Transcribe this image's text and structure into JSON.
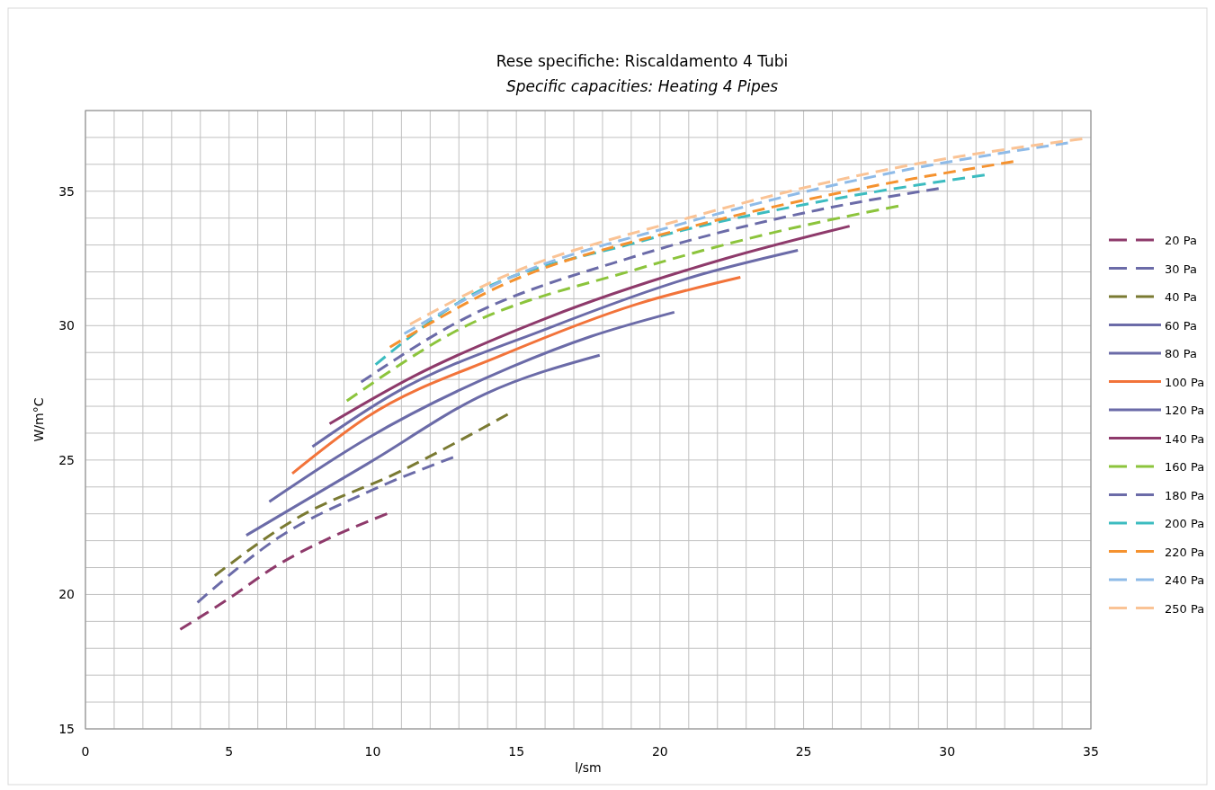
{
  "chart_data": {
    "type": "line",
    "title": "Rese specifiche: Riscaldamento 4 Tubi",
    "subtitle": "Specific capacities: Heating 4 Pipes",
    "xlabel": "l/sm",
    "ylabel": "W/m°C",
    "xlim": [
      0,
      35
    ],
    "ylim": [
      15,
      38
    ],
    "xticks": [
      0,
      {
        "value": 1,
        "label": null
      },
      {
        "value": 2,
        "label": null
      },
      {
        "value": 3,
        "label": null
      },
      {
        "value": 4,
        "label": null
      },
      5,
      {
        "value": 6,
        "label": null
      },
      {
        "value": 7,
        "label": null
      },
      {
        "value": 8,
        "label": null
      },
      {
        "value": 9,
        "label": null
      },
      10,
      {
        "value": 11,
        "label": null
      },
      {
        "value": 12,
        "label": null
      },
      {
        "value": 13,
        "label": null
      },
      {
        "value": 14,
        "label": null
      },
      15,
      {
        "value": 16,
        "label": null
      },
      {
        "value": 17,
        "label": null
      },
      {
        "value": 18,
        "label": null
      },
      {
        "value": 19,
        "label": null
      },
      20,
      {
        "value": 21,
        "label": null
      },
      {
        "value": 22,
        "label": null
      },
      {
        "value": 23,
        "label": null
      },
      {
        "value": 24,
        "label": null
      },
      25,
      {
        "value": 26,
        "label": null
      },
      {
        "value": 27,
        "label": null
      },
      {
        "value": 28,
        "label": null
      },
      {
        "value": 29,
        "label": null
      },
      30,
      {
        "value": 31,
        "label": null
      },
      {
        "value": 32,
        "label": null
      },
      {
        "value": 33,
        "label": null
      },
      {
        "value": 34,
        "label": null
      },
      35
    ],
    "yticks": [
      15,
      {
        "value": 16,
        "label": null
      },
      {
        "value": 17,
        "label": null
      },
      {
        "value": 18,
        "label": null
      },
      {
        "value": 19,
        "label": null
      },
      20,
      {
        "value": 21,
        "label": null
      },
      {
        "value": 22,
        "label": null
      },
      {
        "value": 23,
        "label": null
      },
      {
        "value": 24,
        "label": null
      },
      25,
      {
        "value": 26,
        "label": null
      },
      {
        "value": 27,
        "label": null
      },
      {
        "value": 28,
        "label": null
      },
      {
        "value": 29,
        "label": null
      },
      30,
      {
        "value": 31,
        "label": null
      },
      {
        "value": 32,
        "label": null
      },
      {
        "value": 33,
        "label": null
      },
      {
        "value": 34,
        "label": null
      },
      35,
      {
        "value": 36,
        "label": null
      },
      {
        "value": 37,
        "label": null
      },
      {
        "value": 38,
        "label": null
      }
    ],
    "grid": true,
    "legend": "right",
    "series": [
      {
        "name": "20 Pa",
        "color": "#8e3a6b",
        "line_style": "dashed",
        "x": [
          3.3,
          5,
          6.7,
          8.5,
          10.5
        ],
        "values": [
          18.7,
          19.85,
          21.1,
          22.1,
          23.0
        ]
      },
      {
        "name": "30 Pa",
        "color": "#6b6ba8",
        "line_style": "dashed",
        "x": [
          3.9,
          6.7,
          9.8,
          12.8
        ],
        "values": [
          19.7,
          22.1,
          23.8,
          25.1
        ]
      },
      {
        "name": "40 Pa",
        "color": "#7a7a32",
        "line_style": "dashed",
        "x": [
          4.5,
          7.3,
          11.0,
          14.7
        ],
        "values": [
          20.7,
          22.8,
          24.6,
          26.7
        ]
      },
      {
        "name": "60 Pa",
        "color": "#6b6ba8",
        "line_style": "solid",
        "x": [
          5.6,
          9.8,
          13.9,
          17.9
        ],
        "values": [
          22.2,
          24.85,
          27.45,
          28.9
        ]
      },
      {
        "name": "80 Pa",
        "color": "#6b6ba8",
        "line_style": "solid",
        "x": [
          6.4,
          9.8,
          14.8,
          17.6,
          20.5
        ],
        "values": [
          23.45,
          25.8,
          28.45,
          29.6,
          30.5
        ]
      },
      {
        "name": "100 Pa",
        "color": "#f2733a",
        "line_style": "solid",
        "x": [
          7.2,
          9.8,
          14.5,
          19.2,
          22.8
        ],
        "values": [
          24.5,
          26.6,
          28.9,
          30.8,
          31.8
        ]
      },
      {
        "name": "120 Pa",
        "color": "#6b6ba8",
        "line_style": "solid",
        "x": [
          7.9,
          10.7,
          16.1,
          21.1,
          24.8
        ],
        "values": [
          25.5,
          27.45,
          29.9,
          31.8,
          32.8
        ]
      },
      {
        "name": "140 Pa",
        "color": "#8e3a6b",
        "line_style": "solid",
        "x": [
          8.5,
          11.4,
          16.1,
          22.3,
          26.6
        ],
        "values": [
          26.35,
          28.1,
          30.3,
          32.5,
          33.7
        ]
      },
      {
        "name": "160 Pa",
        "color": "#8cc43c",
        "line_style": "dashed",
        "x": [
          9.1,
          12.9,
          19.2,
          23.9,
          28.3
        ],
        "values": [
          27.2,
          29.8,
          32.1,
          33.45,
          34.45
        ]
      },
      {
        "name": "180 Pa",
        "color": "#6b6ba8",
        "line_style": "dashed",
        "x": [
          9.6,
          12.9,
          19.2,
          25.5,
          29.7
        ],
        "values": [
          27.9,
          30.1,
          32.6,
          34.3,
          35.1
        ]
      },
      {
        "name": "200 Pa",
        "color": "#3cbcc0",
        "line_style": "dashed",
        "x": [
          10.1,
          12.9,
          19.2,
          25.5,
          31.3
        ],
        "values": [
          28.55,
          30.8,
          33.1,
          34.6,
          35.6
        ]
      },
      {
        "name": "220 Pa",
        "color": "#f5922f",
        "line_style": "dashed",
        "x": [
          10.6,
          14.5,
          20.8,
          27.0,
          32.3
        ],
        "values": [
          29.2,
          31.5,
          33.6,
          35.1,
          36.1
        ]
      },
      {
        "name": "240 Pa",
        "color": "#8fbbe8",
        "line_style": "dashed",
        "x": [
          11.1,
          14.5,
          20.8,
          28.6,
          34.2
        ],
        "values": [
          29.7,
          31.65,
          33.8,
          35.8,
          36.8
        ]
      },
      {
        "name": "250 Pa",
        "color": "#fac395",
        "line_style": "dashed",
        "x": [
          11.3,
          14.5,
          20.8,
          28.6,
          34.7
        ],
        "values": [
          30.05,
          31.8,
          33.95,
          35.95,
          36.95
        ]
      }
    ]
  }
}
